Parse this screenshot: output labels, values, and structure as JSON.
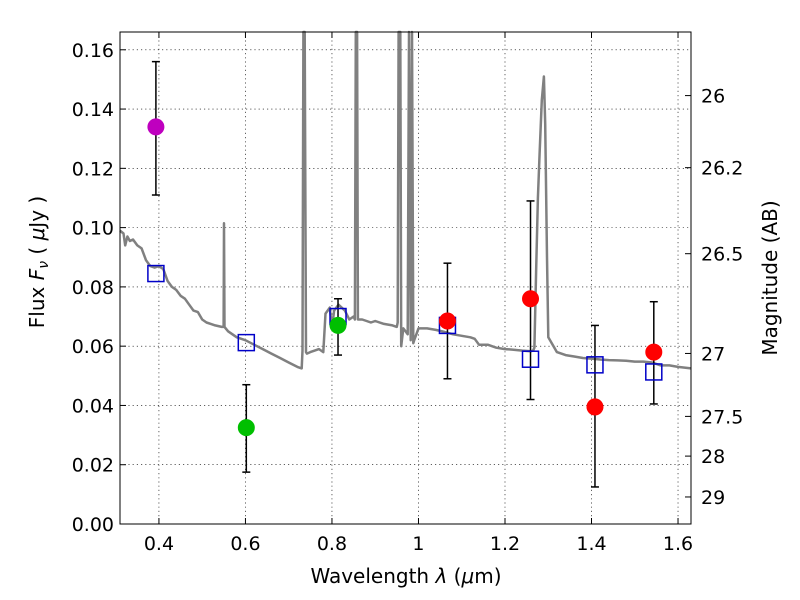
{
  "chart_data": {
    "type": "scatter",
    "xlabel": "Wavelength  λ (μm)",
    "ylabel": "Flux  Fν  ( μJy )",
    "ylabel_right": "Magnitude (AB)",
    "xlim": [
      0.31,
      1.63
    ],
    "ylim": [
      0.0,
      0.166
    ],
    "xticks": [
      0.4,
      0.6,
      0.8,
      1.0,
      1.2,
      1.4,
      1.6
    ],
    "xtick_labels": [
      "0.4",
      "0.6",
      "0.8",
      "1",
      "1.2",
      "1.4",
      "1.6"
    ],
    "yticks": [
      0.0,
      0.02,
      0.04,
      0.06,
      0.08,
      0.1,
      0.12,
      0.14,
      0.16
    ],
    "ytick_labels": [
      "0.00",
      "0.02",
      "0.04",
      "0.06",
      "0.08",
      "0.10",
      "0.12",
      "0.14",
      "0.16"
    ],
    "right_ticks": [
      {
        "label": "26",
        "mag": 26.0
      },
      {
        "label": "26.2",
        "mag": 26.2
      },
      {
        "label": "26.5",
        "mag": 26.5
      },
      {
        "label": "27",
        "mag": 27.0
      },
      {
        "label": "27.5",
        "mag": 27.5
      },
      {
        "label": "28",
        "mag": 28.0
      },
      {
        "label": "29",
        "mag": 29.0
      }
    ],
    "grid": true,
    "observed": [
      {
        "x": 0.393,
        "y": 0.134,
        "yerr_low": 0.111,
        "yerr_high": 0.156,
        "color": "#bf00bf"
      },
      {
        "x": 0.602,
        "y": 0.0325,
        "yerr_low": 0.0175,
        "yerr_high": 0.047,
        "color": "#00bf00"
      },
      {
        "x": 0.814,
        "y": 0.067,
        "yerr_low": 0.057,
        "yerr_high": 0.076,
        "color": "#00bf00"
      },
      {
        "x": 1.067,
        "y": 0.0685,
        "yerr_low": 0.049,
        "yerr_high": 0.088,
        "color": "#ff0000"
      },
      {
        "x": 1.259,
        "y": 0.076,
        "yerr_low": 0.042,
        "yerr_high": 0.109,
        "color": "#ff0000"
      },
      {
        "x": 1.408,
        "y": 0.0395,
        "yerr_low": 0.0125,
        "yerr_high": 0.067,
        "color": "#ff0000"
      },
      {
        "x": 1.544,
        "y": 0.058,
        "yerr_low": 0.0405,
        "yerr_high": 0.075,
        "color": "#ff0000"
      }
    ],
    "model_photometry": [
      {
        "x": 0.393,
        "y": 0.0845
      },
      {
        "x": 0.602,
        "y": 0.0612
      },
      {
        "x": 0.814,
        "y": 0.07
      },
      {
        "x": 1.067,
        "y": 0.067
      },
      {
        "x": 1.259,
        "y": 0.0556
      },
      {
        "x": 1.408,
        "y": 0.0537
      },
      {
        "x": 1.544,
        "y": 0.0513
      }
    ],
    "model_spectrum": [
      [
        0.31,
        0.099
      ],
      [
        0.318,
        0.098
      ],
      [
        0.322,
        0.094
      ],
      [
        0.327,
        0.097
      ],
      [
        0.333,
        0.0955
      ],
      [
        0.34,
        0.096
      ],
      [
        0.35,
        0.094
      ],
      [
        0.36,
        0.093
      ],
      [
        0.37,
        0.089
      ],
      [
        0.38,
        0.087
      ],
      [
        0.39,
        0.0865
      ],
      [
        0.4,
        0.087
      ],
      [
        0.41,
        0.086
      ],
      [
        0.42,
        0.082
      ],
      [
        0.43,
        0.08
      ],
      [
        0.44,
        0.079
      ],
      [
        0.45,
        0.077
      ],
      [
        0.46,
        0.076
      ],
      [
        0.47,
        0.074
      ],
      [
        0.48,
        0.072
      ],
      [
        0.49,
        0.0715
      ],
      [
        0.5,
        0.069
      ],
      [
        0.51,
        0.068
      ],
      [
        0.52,
        0.0675
      ],
      [
        0.53,
        0.067
      ],
      [
        0.545,
        0.0665
      ],
      [
        0.5495,
        0.0665
      ],
      [
        0.5505,
        0.1015
      ],
      [
        0.5515,
        0.0665
      ],
      [
        0.56,
        0.065
      ],
      [
        0.58,
        0.063
      ],
      [
        0.6,
        0.062
      ],
      [
        0.62,
        0.0605
      ],
      [
        0.64,
        0.059
      ],
      [
        0.66,
        0.0575
      ],
      [
        0.68,
        0.056
      ],
      [
        0.7,
        0.0545
      ],
      [
        0.72,
        0.053
      ],
      [
        0.73,
        0.0525
      ],
      [
        0.732,
        0.0585
      ],
      [
        0.734,
        0.166
      ],
      [
        0.737,
        0.166
      ],
      [
        0.74,
        0.058
      ],
      [
        0.742,
        0.0575
      ],
      [
        0.75,
        0.058
      ],
      [
        0.76,
        0.0585
      ],
      [
        0.77,
        0.059
      ],
      [
        0.78,
        0.058
      ],
      [
        0.785,
        0.071
      ],
      [
        0.795,
        0.073
      ],
      [
        0.8,
        0.066
      ],
      [
        0.805,
        0.072
      ],
      [
        0.815,
        0.074
      ],
      [
        0.83,
        0.072
      ],
      [
        0.84,
        0.069
      ],
      [
        0.85,
        0.07
      ],
      [
        0.853,
        0.069
      ],
      [
        0.855,
        0.166
      ],
      [
        0.858,
        0.166
      ],
      [
        0.86,
        0.069
      ],
      [
        0.87,
        0.069
      ],
      [
        0.88,
        0.0685
      ],
      [
        0.89,
        0.068
      ],
      [
        0.9,
        0.0685
      ],
      [
        0.92,
        0.0675
      ],
      [
        0.94,
        0.067
      ],
      [
        0.95,
        0.0665
      ],
      [
        0.952,
        0.068
      ],
      [
        0.954,
        0.166
      ],
      [
        0.958,
        0.166
      ],
      [
        0.96,
        0.06
      ],
      [
        0.965,
        0.066
      ],
      [
        0.97,
        0.065
      ],
      [
        0.975,
        0.064
      ],
      [
        0.978,
        0.166
      ],
      [
        0.982,
        0.062
      ],
      [
        0.985,
        0.166
      ],
      [
        0.988,
        0.061
      ],
      [
        0.99,
        0.062
      ],
      [
        1.0,
        0.066
      ],
      [
        1.02,
        0.066
      ],
      [
        1.04,
        0.0655
      ],
      [
        1.06,
        0.0648
      ],
      [
        1.08,
        0.064
      ],
      [
        1.1,
        0.0635
      ],
      [
        1.12,
        0.063
      ],
      [
        1.13,
        0.0625
      ],
      [
        1.14,
        0.0605
      ],
      [
        1.16,
        0.0605
      ],
      [
        1.18,
        0.0595
      ],
      [
        1.2,
        0.059
      ],
      [
        1.22,
        0.0588
      ],
      [
        1.24,
        0.0585
      ],
      [
        1.26,
        0.0583
      ],
      [
        1.265,
        0.0585
      ],
      [
        1.268,
        0.0595
      ],
      [
        1.272,
        0.085
      ],
      [
        1.276,
        0.11
      ],
      [
        1.28,
        0.125
      ],
      [
        1.285,
        0.143
      ],
      [
        1.29,
        0.151
      ],
      [
        1.293,
        0.135
      ],
      [
        1.297,
        0.09
      ],
      [
        1.3,
        0.063
      ],
      [
        1.32,
        0.058
      ],
      [
        1.34,
        0.057
      ],
      [
        1.36,
        0.0565
      ],
      [
        1.38,
        0.056
      ],
      [
        1.4,
        0.0558
      ],
      [
        1.42,
        0.0555
      ],
      [
        1.44,
        0.0553
      ],
      [
        1.46,
        0.0552
      ],
      [
        1.48,
        0.0551
      ],
      [
        1.5,
        0.0548
      ],
      [
        1.52,
        0.0548
      ],
      [
        1.54,
        0.0545
      ],
      [
        1.56,
        0.0535
      ],
      [
        1.58,
        0.0535
      ],
      [
        1.6,
        0.053
      ],
      [
        1.63,
        0.0525
      ]
    ]
  }
}
